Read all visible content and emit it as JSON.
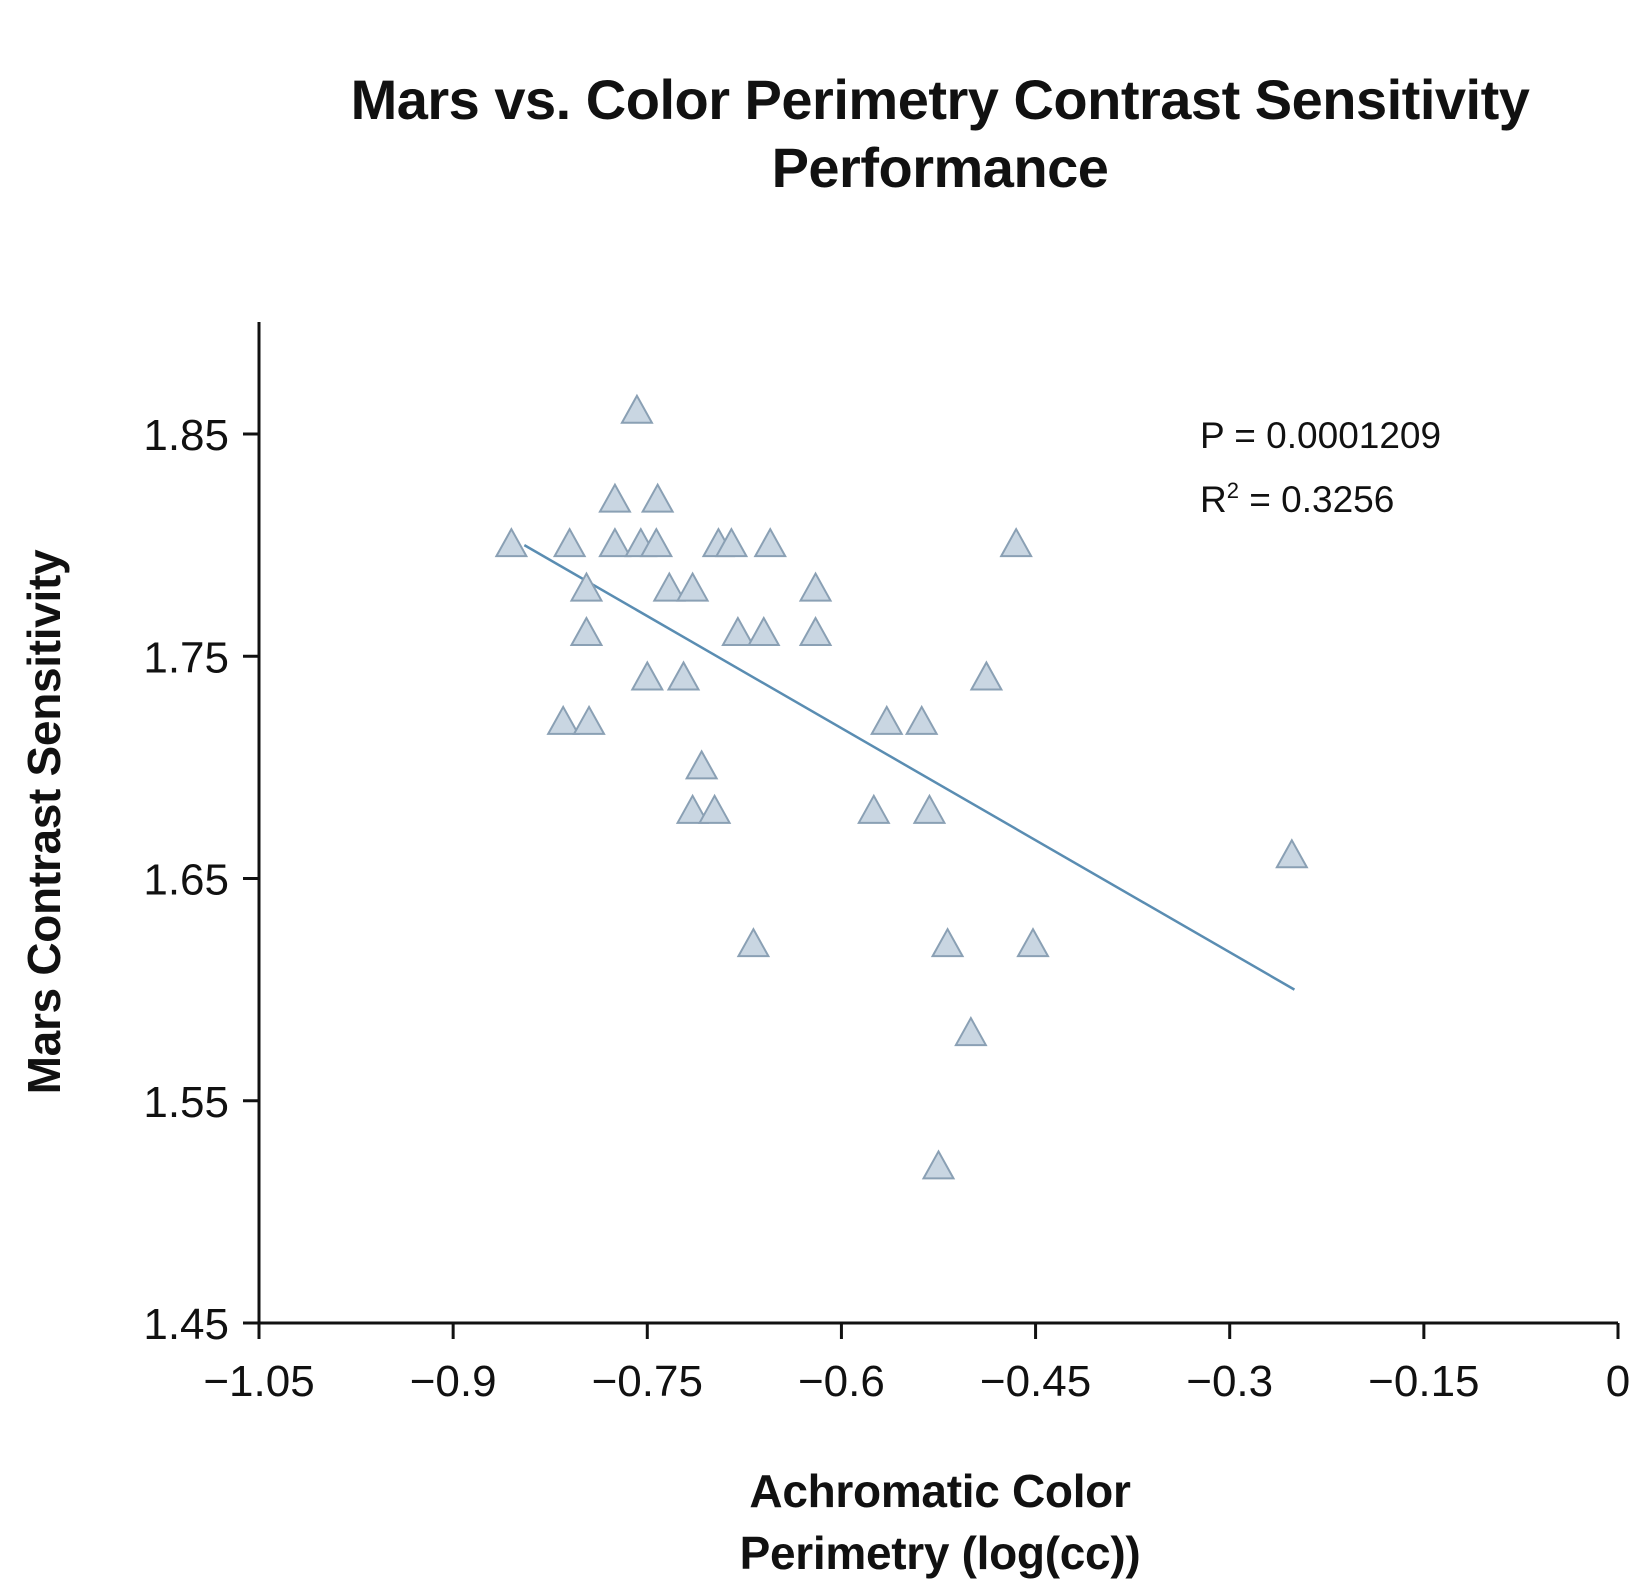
{
  "chart_data": {
    "type": "scatter",
    "title_line1": "Mars vs. Color Perimetry Contrast Sensitivity",
    "title_line2": "Performance",
    "xlabel_line1": "Achromatic Color",
    "xlabel_line2": "Perimetry (log(cc))",
    "ylabel": "Mars Contrast Sensitivity",
    "xlim": [
      -1.05,
      0
    ],
    "ylim": [
      1.45,
      1.9
    ],
    "x_ticks": [
      -1.05,
      -0.9,
      -0.75,
      -0.6,
      -0.45,
      -0.3,
      -0.15,
      0
    ],
    "x_tick_labels": [
      "−1.05",
      "−0.9",
      "−0.75",
      "−0.6",
      "−0.45",
      "−0.3",
      "−0.15",
      "0"
    ],
    "y_ticks": [
      1.45,
      1.55,
      1.65,
      1.75,
      1.85
    ],
    "y_tick_labels": [
      "1.45",
      "1.55",
      "1.65",
      "1.75",
      "1.85"
    ],
    "marker": "triangle",
    "marker_color": "#c9d6e2",
    "marker_edge_color": "#8aa0b4",
    "line_color": "#5a8db2",
    "annotations": {
      "p_text": "P = 0.0001209",
      "r2_prefix": "R",
      "r2_sup": "2",
      "r2_suffix": " = 0.3256"
    },
    "series": [
      {
        "name": "data",
        "points": [
          [
            -0.855,
            1.8
          ],
          [
            -0.81,
            1.8
          ],
          [
            -0.775,
            1.8
          ],
          [
            -0.755,
            1.8
          ],
          [
            -0.743,
            1.8
          ],
          [
            -0.695,
            1.8
          ],
          [
            -0.685,
            1.8
          ],
          [
            -0.655,
            1.8
          ],
          [
            -0.465,
            1.8
          ],
          [
            -0.775,
            1.82
          ],
          [
            -0.742,
            1.82
          ],
          [
            -0.758,
            1.86
          ],
          [
            -0.797,
            1.78
          ],
          [
            -0.733,
            1.78
          ],
          [
            -0.715,
            1.78
          ],
          [
            -0.62,
            1.78
          ],
          [
            -0.797,
            1.76
          ],
          [
            -0.68,
            1.76
          ],
          [
            -0.66,
            1.76
          ],
          [
            -0.62,
            1.76
          ],
          [
            -0.75,
            1.74
          ],
          [
            -0.722,
            1.74
          ],
          [
            -0.488,
            1.74
          ],
          [
            -0.815,
            1.72
          ],
          [
            -0.795,
            1.72
          ],
          [
            -0.565,
            1.72
          ],
          [
            -0.538,
            1.72
          ],
          [
            -0.708,
            1.7
          ],
          [
            -0.715,
            1.68
          ],
          [
            -0.698,
            1.68
          ],
          [
            -0.575,
            1.68
          ],
          [
            -0.532,
            1.68
          ],
          [
            -0.252,
            1.66
          ],
          [
            -0.668,
            1.62
          ],
          [
            -0.518,
            1.62
          ],
          [
            -0.452,
            1.62
          ],
          [
            -0.5,
            1.58
          ],
          [
            -0.525,
            1.52
          ]
        ]
      }
    ],
    "regression_line": {
      "x": [
        -0.845,
        -0.25
      ],
      "y": [
        1.8,
        1.6
      ]
    }
  }
}
